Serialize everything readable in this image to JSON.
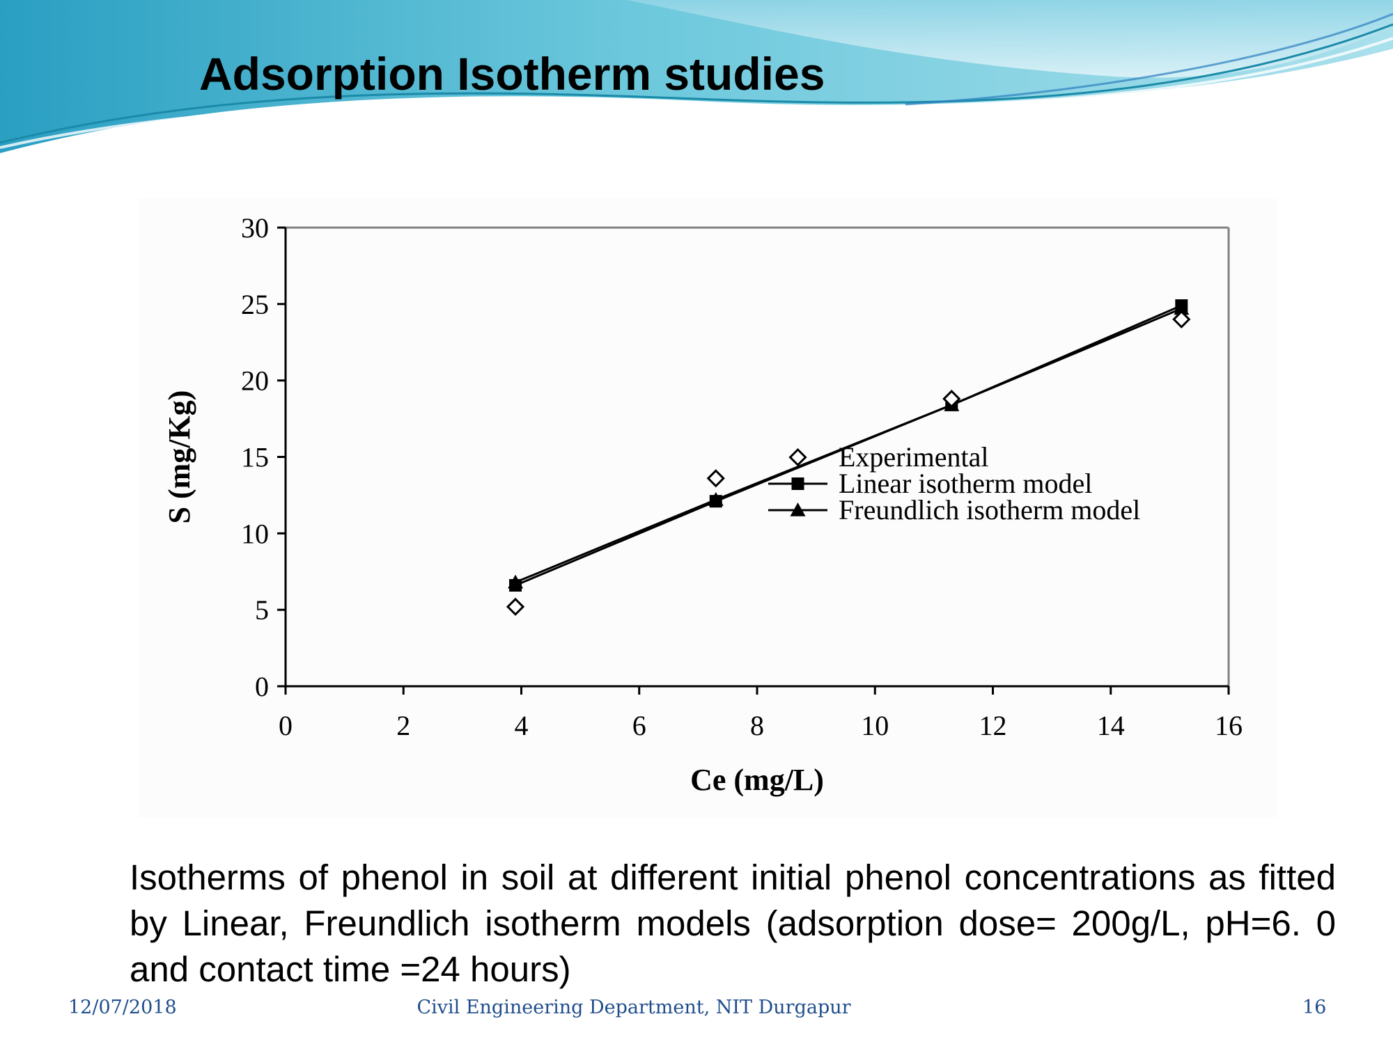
{
  "slide": {
    "title": "Adsorption Isotherm studies",
    "caption": "Isotherms of phenol in soil at different initial phenol concentrations as fitted by Linear, Freundlich isotherm models (adsorption dose= 200g/L, pH=6. 0 and contact time =24 hours)",
    "footer": {
      "date": "12/07/2018",
      "department": "Civil Engineering Department, NIT Durgapur",
      "page": "16"
    },
    "colors": {
      "banner_dark": "#2a9fc2",
      "banner_light": "#a9e0ec",
      "footer_text": "#1f4d8c"
    }
  },
  "chart_data": {
    "type": "scatter",
    "title": "",
    "xlabel": "Ce (mg/L)",
    "ylabel": "S (mg/Kg)",
    "xlim": [
      0,
      16
    ],
    "ylim": [
      0,
      30
    ],
    "xticks": [
      0,
      2,
      4,
      6,
      8,
      10,
      12,
      14,
      16
    ],
    "yticks": [
      0,
      5,
      10,
      15,
      20,
      25,
      30
    ],
    "grid": false,
    "legend_position": "bottom-right",
    "series": [
      {
        "name": "Experimental",
        "marker": "diamond-open",
        "line": false,
        "x": [
          3.9,
          7.3,
          11.3,
          15.2
        ],
        "y": [
          5.2,
          13.6,
          18.8,
          24.0
        ]
      },
      {
        "name": "Linear isotherm model",
        "marker": "square-filled",
        "line": true,
        "x": [
          3.9,
          7.3,
          11.3,
          15.2
        ],
        "y": [
          6.6,
          12.1,
          18.4,
          24.9
        ]
      },
      {
        "name": "Freundlich isotherm model",
        "marker": "triangle-filled",
        "line": true,
        "x": [
          3.9,
          7.3,
          11.3,
          15.2
        ],
        "y": [
          6.8,
          12.2,
          18.4,
          24.7
        ]
      }
    ]
  }
}
